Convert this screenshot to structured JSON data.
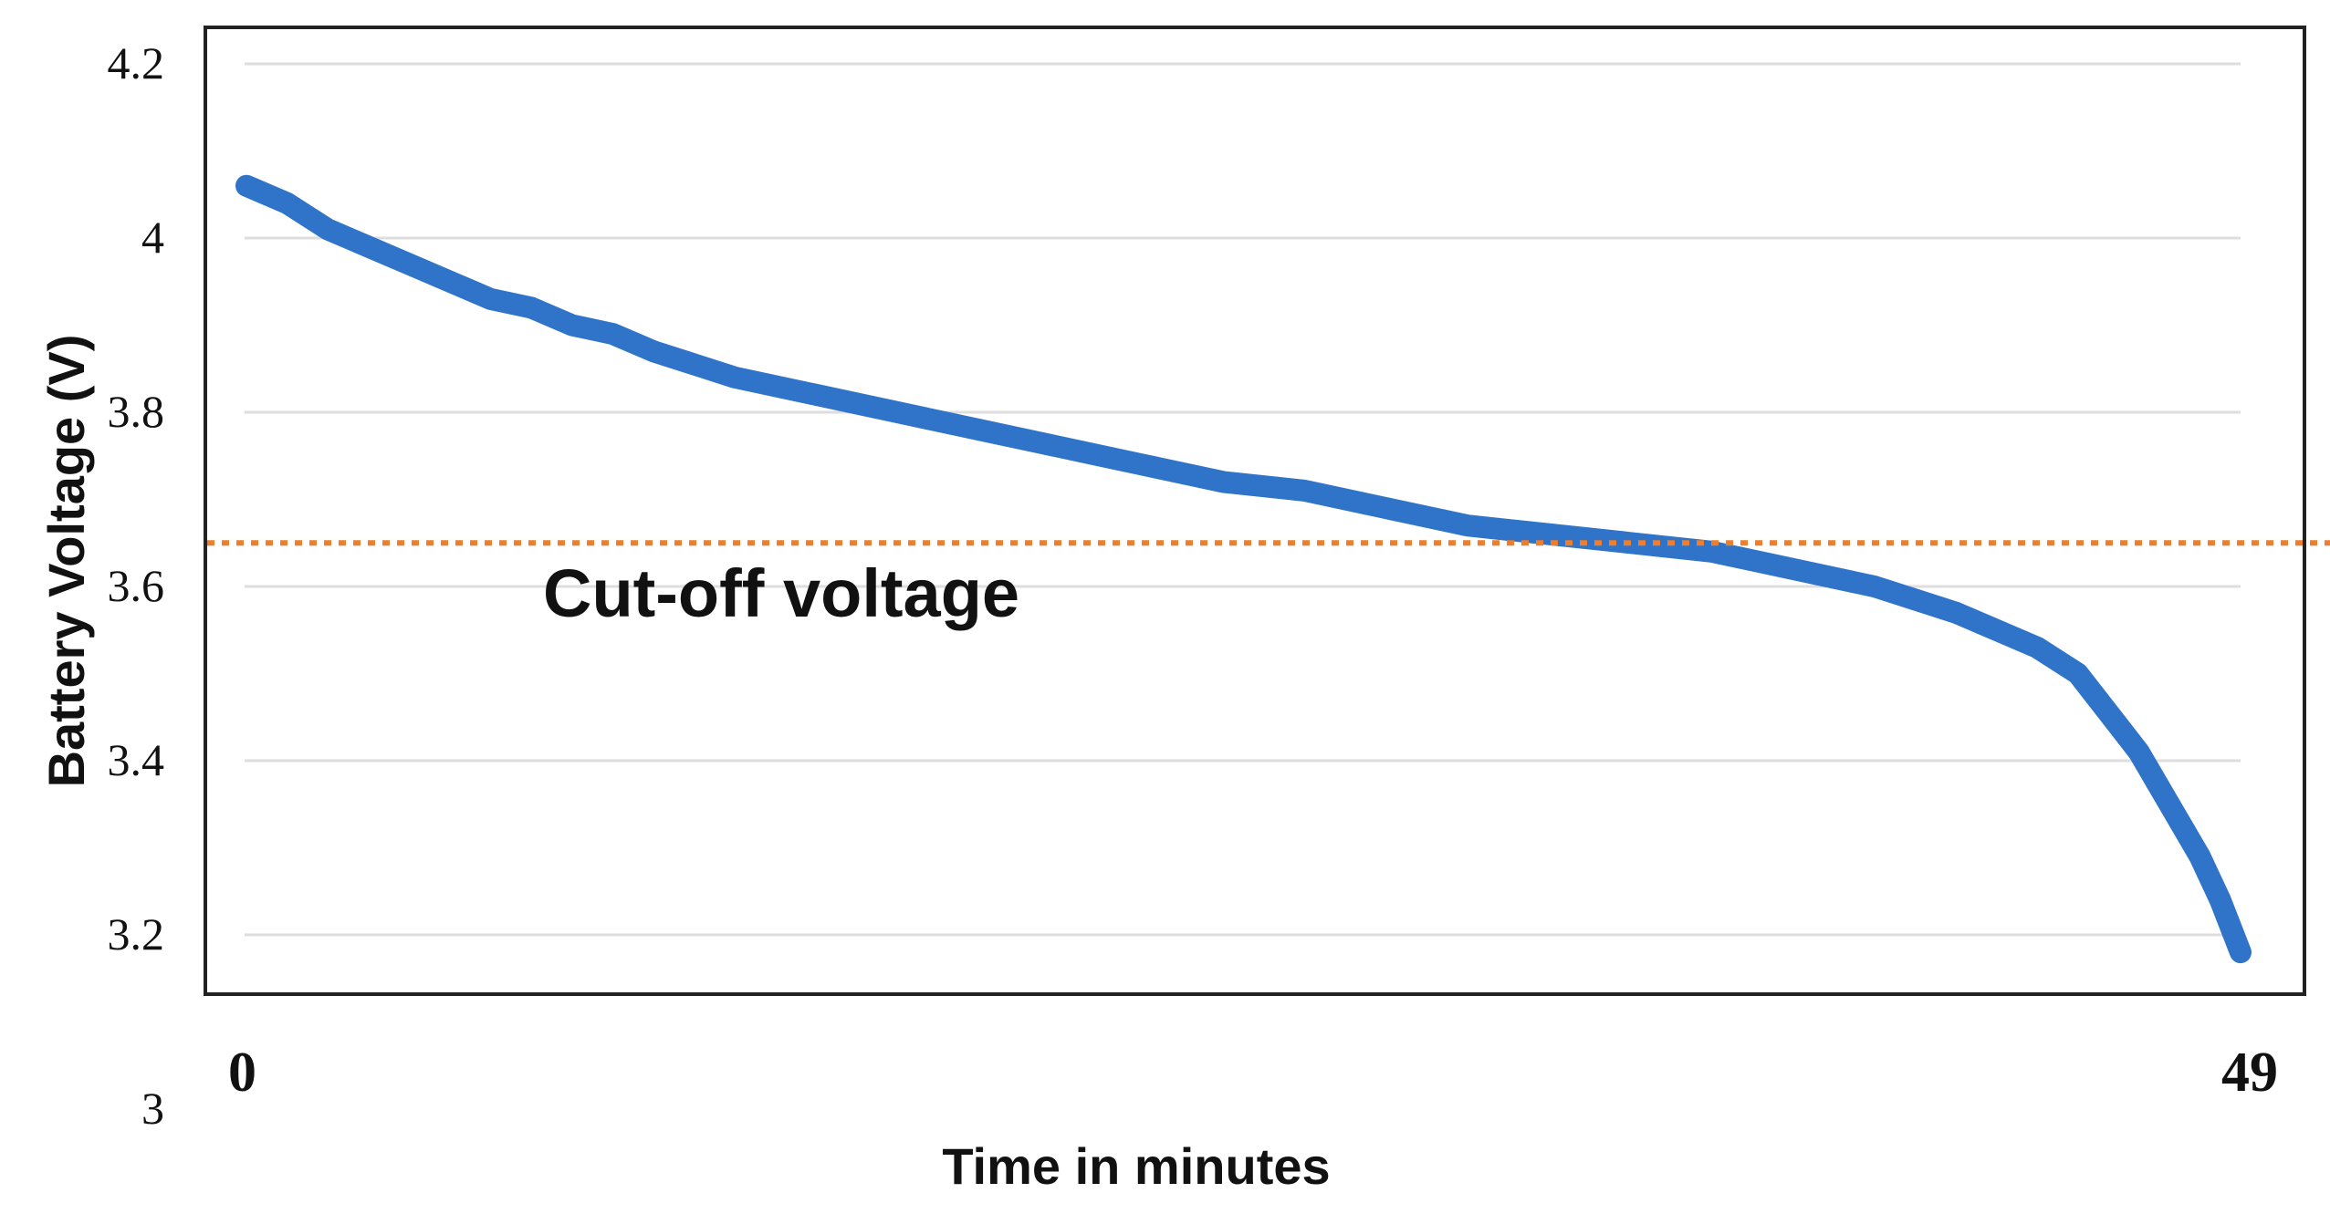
{
  "chart_data": {
    "type": "line",
    "title": "",
    "xlabel": "Time in minutes",
    "ylabel": "Battery Voltage (V)",
    "xlim": [
      0,
      49
    ],
    "ylim": [
      3.0,
      4.2
    ],
    "x_ticks": [
      "0",
      "49"
    ],
    "y_ticks": [
      "4.2",
      "4",
      "3.8",
      "3.6",
      "3.4",
      "3.2",
      "3"
    ],
    "grid": true,
    "series": [
      {
        "color": "#2f74c8",
        "x": [
          0,
          1,
          2,
          3,
          4,
          5,
          6,
          7,
          8,
          9,
          10,
          12,
          14,
          16,
          18,
          20,
          22,
          24,
          26,
          28,
          30,
          32,
          34,
          36,
          38,
          40,
          42,
          43,
          44,
          45,
          45.5,
          46,
          46.5,
          47,
          47.5,
          48,
          48.5,
          49
        ],
        "y": [
          4.06,
          4.04,
          4.01,
          3.99,
          3.97,
          3.95,
          3.93,
          3.92,
          3.9,
          3.89,
          3.87,
          3.84,
          3.82,
          3.8,
          3.78,
          3.76,
          3.74,
          3.72,
          3.71,
          3.69,
          3.67,
          3.66,
          3.65,
          3.64,
          3.62,
          3.6,
          3.57,
          3.55,
          3.53,
          3.5,
          3.47,
          3.44,
          3.41,
          3.37,
          3.33,
          3.29,
          3.24,
          3.18
        ]
      }
    ],
    "reference_line": {
      "y": 3.65,
      "color": "#f07d2a",
      "style": "dotted",
      "label": "Cut-off voltage"
    }
  }
}
